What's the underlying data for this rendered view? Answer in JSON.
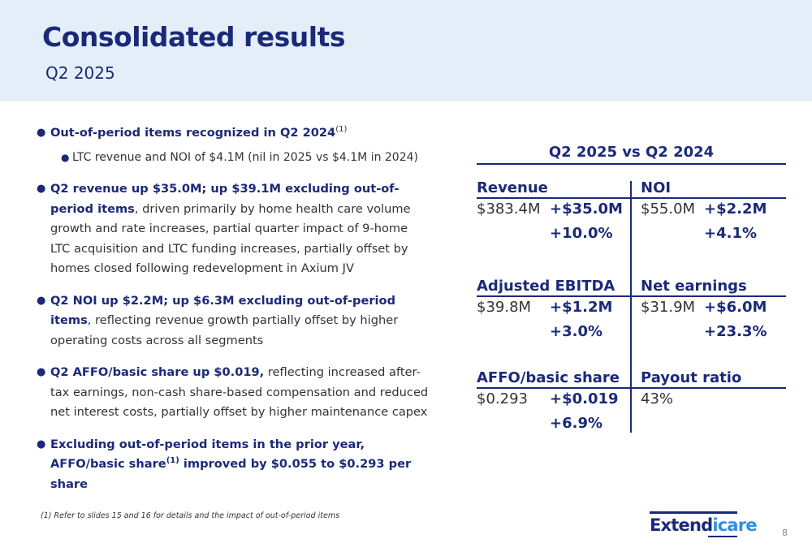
{
  "slide": {
    "title": "Consolidated results",
    "subtitle": "Q2 2025",
    "page_number": "8"
  },
  "bullets": [
    {
      "bold": "Out-of-period items recognized in Q2 2024",
      "sup": "(1)",
      "rest": "",
      "sub": [
        "LTC revenue and NOI of $4.1M (nil in 2025 vs $4.1M in 2024)"
      ]
    },
    {
      "bold": "Q2 revenue up $35.0M; up $39.1M excluding out-of-period items",
      "rest": ", driven primarily by home health care volume growth and rate increases, partial quarter impact of 9-home LTC acquisition and LTC funding increases, partially offset by homes closed following redevelopment in Axium JV"
    },
    {
      "bold": "Q2 NOI up $2.2M; up $6.3M excluding out-of-period items",
      "rest": ", reflecting revenue growth partially offset by higher operating costs across all segments"
    },
    {
      "bold": "Q2 AFFO/basic share up $0.019,",
      "rest": " reflecting increased after-tax earnings, non-cash share-based compensation and reduced net interest costs, partially offset by higher maintenance capex"
    },
    {
      "bold_a": "Excluding out-of-period items in the prior year, AFFO/basic share",
      "sup": "(1)",
      "bold_b": " improved by $0.055 to $0.293 per share"
    }
  ],
  "comparison": {
    "title": "Q2 2025 vs Q2 2024",
    "metrics": [
      {
        "label": "Revenue",
        "value": "$383.4M",
        "change": "+$35.0M",
        "pct": "+10.0%"
      },
      {
        "label": "NOI",
        "value": "$55.0M",
        "change": "+$2.2M",
        "pct": "+4.1%"
      },
      {
        "label": "Adjusted EBITDA",
        "value": "$39.8M",
        "change": "+$1.2M",
        "pct": "+3.0%"
      },
      {
        "label": "Net earnings",
        "value": "$31.9M",
        "change": "+$6.0M",
        "pct": "+23.3%"
      },
      {
        "label": "AFFO/basic share",
        "value": "$0.293",
        "change": "+$0.019",
        "pct": "+6.9%"
      },
      {
        "label": "Payout ratio",
        "value": "43%",
        "change": "",
        "pct": ""
      }
    ]
  },
  "footnote": "(1)  Refer to slides 15 and 16 for details and the impact of out-of-period items",
  "logo": {
    "part1": "Extend",
    "part2": "icare"
  },
  "colors": {
    "navy": "#1b2a78",
    "header_bg": "#e4eef9",
    "logo_blue": "#2f8fe0"
  }
}
